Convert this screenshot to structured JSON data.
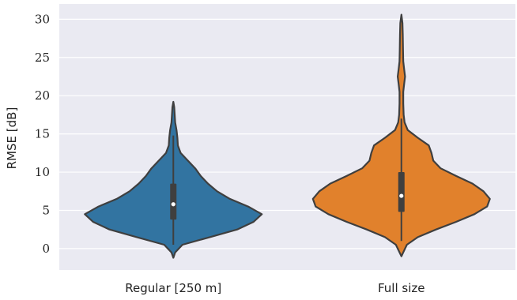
{
  "chart_data": {
    "type": "violin",
    "title": "",
    "xlabel": "",
    "ylabel": "RMSE [dB]",
    "ylim": [
      -2.8,
      32
    ],
    "yticks": [
      0,
      5,
      10,
      15,
      20,
      25,
      30
    ],
    "grid": true,
    "background": "#eaeaf2",
    "categories": [
      "Regular [250 m]",
      "Full size"
    ],
    "series": [
      {
        "color": "#3274a1",
        "median": 5.8,
        "q1": 3.8,
        "q3": 8.5,
        "whisker_low": 0.5,
        "whisker_high": 14.8,
        "min": -1.2,
        "max": 19.2,
        "density": [
          [
            -1.2,
            0.0
          ],
          [
            -0.5,
            0.02
          ],
          [
            0.5,
            0.1
          ],
          [
            1.5,
            0.4
          ],
          [
            2.5,
            0.7
          ],
          [
            3.5,
            0.88
          ],
          [
            4.5,
            0.97
          ],
          [
            5.5,
            0.82
          ],
          [
            6.5,
            0.62
          ],
          [
            7.5,
            0.48
          ],
          [
            8.5,
            0.38
          ],
          [
            9.5,
            0.3
          ],
          [
            10.5,
            0.24
          ],
          [
            11.5,
            0.16
          ],
          [
            12.5,
            0.08
          ],
          [
            13.5,
            0.05
          ],
          [
            14.5,
            0.045
          ],
          [
            15.5,
            0.035
          ],
          [
            16.5,
            0.02
          ],
          [
            17.5,
            0.015
          ],
          [
            18.5,
            0.01
          ],
          [
            19.2,
            0.0
          ]
        ]
      },
      {
        "color": "#e1812c",
        "median": 6.9,
        "q1": 4.8,
        "q3": 10.0,
        "whisker_low": 1.0,
        "whisker_high": 17.0,
        "min": -1.0,
        "max": 30.6,
        "density": [
          [
            -1.0,
            0.0
          ],
          [
            -0.5,
            0.02
          ],
          [
            0.5,
            0.06
          ],
          [
            1.5,
            0.18
          ],
          [
            2.5,
            0.38
          ],
          [
            3.5,
            0.6
          ],
          [
            4.5,
            0.8
          ],
          [
            5.5,
            0.94
          ],
          [
            6.5,
            0.97
          ],
          [
            7.5,
            0.9
          ],
          [
            8.5,
            0.78
          ],
          [
            9.5,
            0.6
          ],
          [
            10.5,
            0.43
          ],
          [
            11.5,
            0.35
          ],
          [
            12.5,
            0.33
          ],
          [
            13.5,
            0.3
          ],
          [
            14.5,
            0.18
          ],
          [
            15.5,
            0.07
          ],
          [
            16.5,
            0.035
          ],
          [
            17.5,
            0.025
          ],
          [
            19.0,
            0.02
          ],
          [
            20.5,
            0.02
          ],
          [
            21.5,
            0.03
          ],
          [
            22.5,
            0.04
          ],
          [
            23.5,
            0.03
          ],
          [
            24.5,
            0.02
          ],
          [
            26.0,
            0.018
          ],
          [
            28.0,
            0.015
          ],
          [
            29.5,
            0.012
          ],
          [
            30.6,
            0.0
          ]
        ]
      }
    ]
  }
}
